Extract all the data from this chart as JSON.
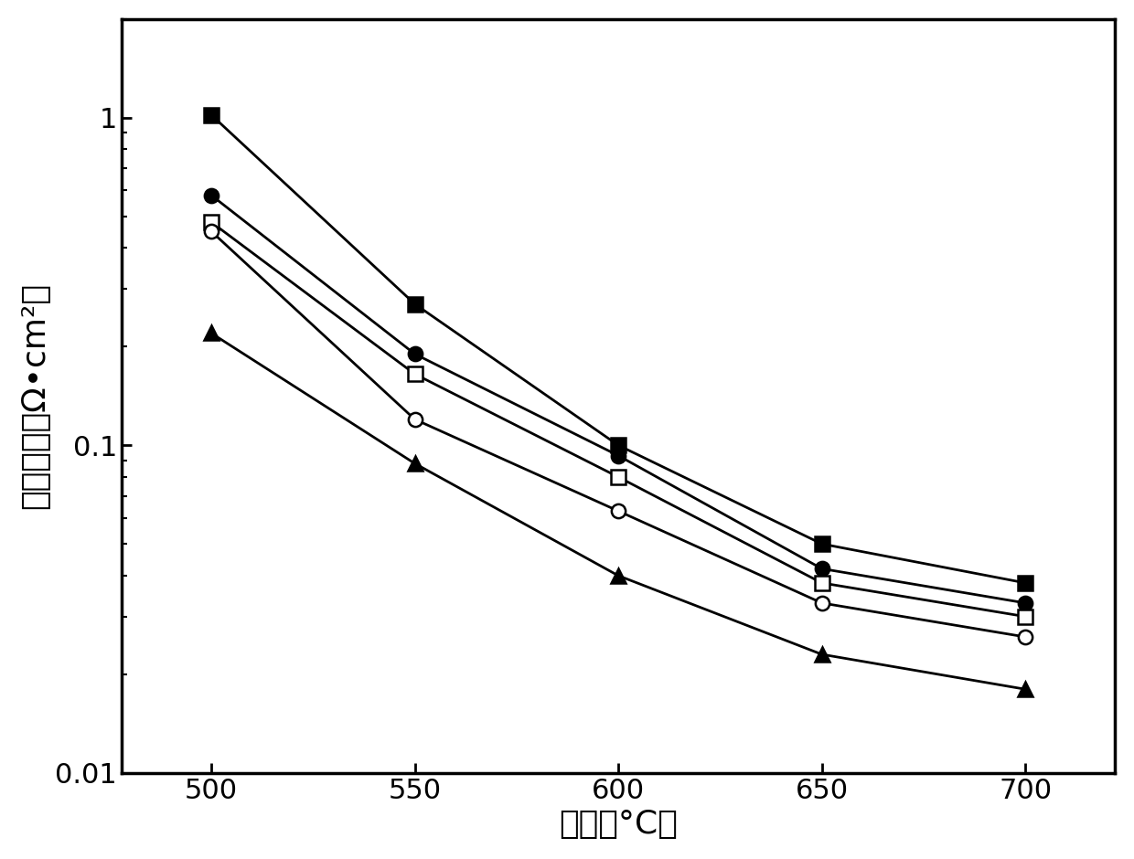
{
  "x": [
    500,
    550,
    600,
    650,
    700
  ],
  "series": [
    {
      "label": "filled_square",
      "y": [
        1.02,
        0.27,
        0.1,
        0.05,
        0.038
      ],
      "marker": "s",
      "fillstyle": "full",
      "color": "black",
      "markersize": 11,
      "linewidth": 2.0
    },
    {
      "label": "filled_circle",
      "y": [
        0.58,
        0.19,
        0.093,
        0.042,
        0.033
      ],
      "marker": "o",
      "fillstyle": "full",
      "color": "black",
      "markersize": 11,
      "linewidth": 2.0
    },
    {
      "label": "open_square",
      "y": [
        0.48,
        0.165,
        0.08,
        0.038,
        0.03
      ],
      "marker": "s",
      "fillstyle": "none",
      "color": "black",
      "markersize": 11,
      "linewidth": 2.0
    },
    {
      "label": "open_circle",
      "y": [
        0.45,
        0.12,
        0.063,
        0.033,
        0.026
      ],
      "marker": "o",
      "fillstyle": "none",
      "color": "black",
      "markersize": 11,
      "linewidth": 2.0
    },
    {
      "label": "filled_triangle",
      "y": [
        0.22,
        0.088,
        0.04,
        0.023,
        0.018
      ],
      "marker": "^",
      "fillstyle": "full",
      "color": "black",
      "markersize": 11,
      "linewidth": 2.0
    }
  ],
  "xlabel": "温度（°C）",
  "ylabel": "极化电阵（Ω•cm²）",
  "xlim": [
    478,
    722
  ],
  "ylim": [
    0.01,
    2.0
  ],
  "xticks": [
    500,
    550,
    600,
    650,
    700
  ],
  "yticks": [
    0.01,
    0.1,
    1
  ],
  "ytick_labels": [
    "0.01",
    "0.1",
    "1"
  ],
  "xlabel_fontsize": 26,
  "ylabel_fontsize": 26,
  "tick_fontsize": 22,
  "background_color": "#ffffff",
  "spine_linewidth": 2.5
}
